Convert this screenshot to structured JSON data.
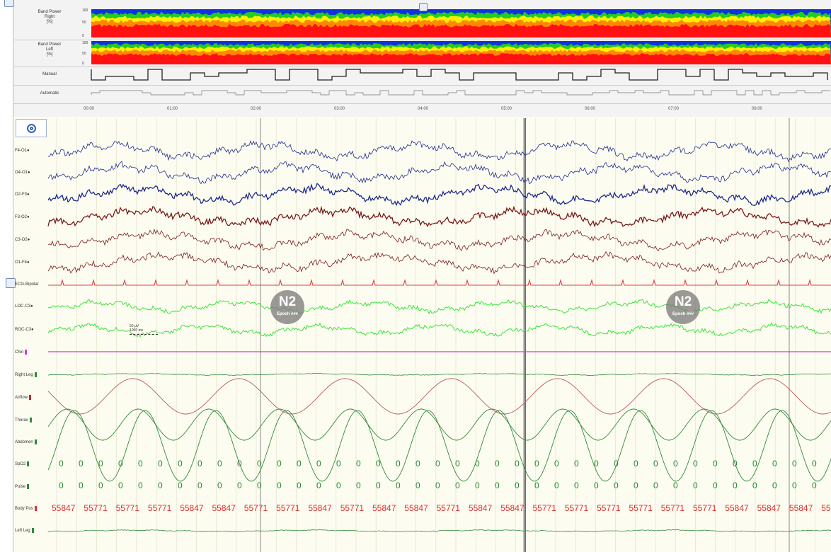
{
  "overview": {
    "band_right": {
      "label": "Band Power\nRight\n[%]",
      "scale_top": "100",
      "scale_mid": "50",
      "scale_bot": "0"
    },
    "band_left": {
      "label": "Band Power\nLeft\n[%]",
      "scale_top": "100",
      "scale_mid": "50",
      "scale_bot": "0"
    },
    "manual_label": "Manual",
    "automatic_label": "Automatic",
    "time_ticks": [
      "00:00",
      "01:00",
      "02:00",
      "03:00",
      "04:00",
      "05:00",
      "06:00",
      "07:00",
      "08:00"
    ]
  },
  "channels": {
    "eeg": [
      "F4-O1●",
      "O4-O1●",
      "O2-F3●",
      "F3-O2●",
      "C3-O2●",
      "O1-F4●"
    ],
    "ecg": "ECG-Bipolar",
    "eog": [
      "LOC-C3●",
      "ROC-C3●"
    ],
    "chin": "Chin",
    "right_leg": "Right Leg",
    "airflow": "Airflow",
    "thorax": "Thorax",
    "abdomen": "Abdomen",
    "spo2": "SpO2",
    "pulse": "Pulse",
    "body_pos": "Body Pos",
    "left_leg": "Left Leg"
  },
  "sleep_stages": [
    {
      "stage": "N2",
      "sub": "Epoch ###"
    },
    {
      "stage": "N2",
      "sub": "Epoch ###"
    }
  ],
  "scale_bar": {
    "value": "50 µV",
    "time": "1000 ms"
  },
  "spo2_values": [
    "0",
    "0",
    "0",
    "0",
    "0",
    "0",
    "0",
    "0",
    "0",
    "0",
    "0",
    "0",
    "0",
    "0",
    "0",
    "0",
    "0",
    "0",
    "0",
    "0",
    "0",
    "0",
    "0",
    "0",
    "0",
    "0",
    "0",
    "0",
    "0",
    "0",
    "0",
    "0",
    "0",
    "0",
    "0",
    "0",
    "0",
    "0",
    "0",
    "0",
    "0"
  ],
  "pulse_values": [
    "0",
    "0",
    "0",
    "0",
    "0",
    "0",
    "0",
    "0",
    "0",
    "0",
    "0",
    "0",
    "0",
    "0",
    "0",
    "0",
    "0",
    "0",
    "0",
    "0",
    "0",
    "0",
    "0",
    "0",
    "0",
    "0",
    "0",
    "0",
    "0",
    "0",
    "0",
    "0",
    "0",
    "0",
    "0",
    "0",
    "0",
    "0",
    "0",
    "0",
    "0"
  ],
  "body_pos_values": [
    "55847",
    "55771",
    "55771",
    "55771",
    "55847",
    "55847",
    "55771",
    "55771",
    "55847",
    "55771",
    "55847",
    "55847",
    "55771",
    "55847",
    "55847",
    "55771",
    "55771",
    "55771",
    "55771",
    "55771",
    "55771",
    "55847",
    "55847",
    "55847",
    "55847",
    "55"
  ],
  "colors": {
    "eeg_blue": "#1c2a8c",
    "eeg_red": "#7a1a1a",
    "ecg": "#e23b3b",
    "eog": "#3be43b",
    "chin": "#d23bd2",
    "resp_green": "#2f8a3a",
    "resp_red": "#b55a5a"
  }
}
